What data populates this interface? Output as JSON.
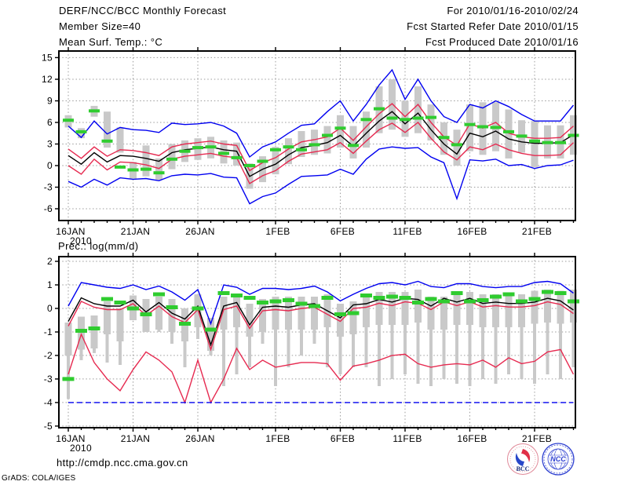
{
  "header": {
    "title": "DERF/NCC/BCC Monthly Forecast",
    "member_size": "Member Size=40",
    "for_range": "For 2010/01/16-2010/02/24",
    "refer_date": "Fcst Started Refer Date 2010/01/15",
    "produced_date": "Fcst Produced Date 2010/01/16"
  },
  "footer": {
    "url": "http://cmdp.ncc.cma.gov.cn",
    "grads_credit": "GrADS: COLA/IGES",
    "bcc_label": "BCC",
    "ncc_label": "NCC"
  },
  "colors": {
    "blue": "#0000f0",
    "red": "#e62a50",
    "green": "#2fcc2f",
    "black": "#000000",
    "bar": "#c9c9c9",
    "grid": "#9b9b9b"
  },
  "chart_data": [
    {
      "id": "temperature",
      "type": "line",
      "title": "Mean Surf. Temp.: °C",
      "ylabel": "°C",
      "n_days": 40,
      "x_start_date": "2010/01/16",
      "x_end_date": "2010/02/24",
      "x_tick_labels": [
        "16JAN",
        "21JAN",
        "26JAN",
        "1FEB",
        "6FEB",
        "11FEB",
        "16FEB",
        "21FEB"
      ],
      "x_tick_days": [
        0,
        5,
        10,
        16,
        21,
        26,
        31,
        36
      ],
      "year_label": "2010",
      "y_ticks": [
        15,
        12,
        9,
        6,
        3,
        0,
        -3,
        -6
      ],
      "ylim": [
        -7.63,
        15.92
      ],
      "grid": true,
      "series": [
        {
          "name": "ensemble-max-blue",
          "color_key": "blue",
          "values": [
            5.5,
            3.9,
            6.2,
            4.4,
            5.3,
            5.0,
            4.9,
            4.6,
            5.9,
            5.7,
            5.8,
            6.0,
            5.5,
            4.5,
            1.2,
            2.6,
            3.3,
            4.5,
            5.6,
            5.8,
            7.5,
            9.0,
            6.2,
            8.5,
            11.2,
            13.3,
            9.2,
            12.0,
            9.0,
            6.8,
            6.0,
            8.5,
            8.0,
            9.0,
            8.2,
            7.1,
            6.2,
            6.2,
            6.2,
            8.4
          ]
        },
        {
          "name": "upper-spread-red",
          "color_key": "red",
          "values": [
            2.3,
            1.0,
            2.6,
            1.3,
            2.2,
            2.1,
            1.8,
            1.4,
            2.6,
            3.0,
            3.2,
            3.4,
            3.0,
            2.8,
            -0.7,
            0.4,
            1.1,
            2.3,
            3.3,
            3.6,
            4.0,
            5.2,
            3.5,
            5.4,
            7.2,
            8.6,
            6.8,
            8.5,
            6.0,
            4.0,
            2.8,
            5.8,
            5.2,
            6.0,
            4.5,
            4.0,
            3.8,
            3.8,
            3.9,
            5.5
          ]
        },
        {
          "name": "ensemble-mean-black",
          "color_key": "black",
          "values": [
            1.4,
            0.2,
            1.8,
            0.5,
            1.4,
            1.3,
            1.0,
            0.6,
            1.8,
            2.2,
            2.4,
            2.6,
            2.2,
            2.0,
            -1.5,
            -0.5,
            0.2,
            1.5,
            2.5,
            2.8,
            3.2,
            4.2,
            2.7,
            4.5,
            6.2,
            7.5,
            5.8,
            7.3,
            5.0,
            3.0,
            1.6,
            4.5,
            4.0,
            4.8,
            3.7,
            3.3,
            3.1,
            3.1,
            3.2,
            4.3
          ]
        },
        {
          "name": "lower-spread-red",
          "color_key": "red",
          "values": [
            0.0,
            -1.2,
            0.9,
            -0.6,
            0.5,
            0.4,
            0.1,
            -0.4,
            0.9,
            1.3,
            1.5,
            1.7,
            1.3,
            1.1,
            -2.5,
            -1.4,
            -0.7,
            0.6,
            1.6,
            1.9,
            2.2,
            3.2,
            1.7,
            3.4,
            5.0,
            5.9,
            4.6,
            6.0,
            3.8,
            1.9,
            0.8,
            2.6,
            2.2,
            3.0,
            2.2,
            1.7,
            1.4,
            1.4,
            1.5,
            3.2
          ]
        },
        {
          "name": "ensemble-min-blue",
          "color_key": "blue",
          "values": [
            -2.2,
            -3.0,
            -1.9,
            -2.7,
            -1.7,
            -1.9,
            -1.8,
            -2.1,
            -1.4,
            -1.2,
            -1.3,
            -1.1,
            -1.6,
            -1.7,
            -5.3,
            -4.3,
            -3.8,
            -2.6,
            -1.5,
            -1.4,
            -1.3,
            -0.5,
            -1.2,
            0.9,
            2.3,
            2.6,
            2.4,
            2.5,
            1.2,
            0.4,
            -4.6,
            0.8,
            0.65,
            0.9,
            0.0,
            0.15,
            -0.4,
            0.0,
            0.1,
            0.75
          ]
        }
      ],
      "obs": {
        "name": "observation-dash-green",
        "color_key": "green",
        "values": [
          6.3,
          4.7,
          7.6,
          3.4,
          -0.2,
          -0.6,
          -0.5,
          -1.0,
          0.9,
          2.0,
          2.5,
          2.6,
          1.7,
          1.1,
          0.0,
          0.6,
          2.2,
          2.6,
          2.2,
          2.9,
          4.2,
          5.2,
          2.8,
          6.4,
          7.9,
          6.6,
          6.4,
          6.6,
          6.7,
          3.9,
          2.9,
          5.7,
          5.4,
          5.3,
          4.7,
          4.1,
          3.4,
          3.2,
          3.2,
          4.2
        ]
      },
      "bars": [
        [
          5.3,
          7.0
        ],
        [
          3.8,
          5.2
        ],
        [
          6.8,
          8.3
        ],
        [
          2.5,
          7.5
        ],
        [
          1.8,
          5.3
        ],
        [
          -1.8,
          0.5
        ],
        [
          -1.5,
          2.8
        ],
        [
          -2.0,
          1.0
        ],
        [
          -0.5,
          3.0
        ],
        [
          0.5,
          3.5
        ],
        [
          0.8,
          3.8
        ],
        [
          1.0,
          4.0
        ],
        [
          0.3,
          3.5
        ],
        [
          0.0,
          3.2
        ],
        [
          -3.2,
          0.3
        ],
        [
          -2.3,
          1.3
        ],
        [
          -1.2,
          2.6
        ],
        [
          0.2,
          3.8
        ],
        [
          1.2,
          4.8
        ],
        [
          1.5,
          5.0
        ],
        [
          1.7,
          5.5
        ],
        [
          2.5,
          7.0
        ],
        [
          1.0,
          5.5
        ],
        [
          2.5,
          7.5
        ],
        [
          4.5,
          11.0
        ],
        [
          5.0,
          12.0
        ],
        [
          4.0,
          9.0
        ],
        [
          4.5,
          11.0
        ],
        [
          3.5,
          8.5
        ],
        [
          1.5,
          6.0
        ],
        [
          0.0,
          5.0
        ],
        [
          2.0,
          8.5
        ],
        [
          1.5,
          8.8
        ],
        [
          2.0,
          8.8
        ],
        [
          1.0,
          7.8
        ],
        [
          1.8,
          6.3
        ],
        [
          -0.2,
          6.2
        ],
        [
          1.0,
          5.6
        ],
        [
          1.0,
          5.6
        ],
        [
          1.5,
          7.0
        ]
      ]
    },
    {
      "id": "precipitation",
      "type": "line",
      "title": "Prec.: log(mm/d)",
      "ylabel": "log(mm/d)",
      "n_days": 40,
      "x_start_date": "2010/01/16",
      "x_end_date": "2010/02/24",
      "x_tick_labels": [
        "16JAN",
        "21JAN",
        "26JAN",
        "1FEB",
        "6FEB",
        "11FEB",
        "16FEB",
        "21FEB"
      ],
      "x_tick_days": [
        0,
        5,
        10,
        16,
        21,
        26,
        31,
        36
      ],
      "year_label": "2010",
      "y_ticks": [
        2,
        1,
        0,
        -1,
        -2,
        -3,
        -4,
        -5
      ],
      "ylim": [
        -5.07,
        2.2
      ],
      "grid": true,
      "series": [
        {
          "name": "ensemble-max-blue",
          "color_key": "blue",
          "values": [
            0.1,
            1.1,
            1.0,
            0.9,
            0.85,
            1.0,
            0.8,
            0.95,
            0.7,
            0.35,
            0.8,
            -0.65,
            1.0,
            0.9,
            0.6,
            0.85,
            0.85,
            0.8,
            0.85,
            0.95,
            0.7,
            0.32,
            0.6,
            0.85,
            1.05,
            1.1,
            1.0,
            1.15,
            0.93,
            0.88,
            1.05,
            1.05,
            0.93,
            0.88,
            0.93,
            0.93,
            1.1,
            1.15,
            1.05,
            0.65
          ]
        },
        {
          "name": "upper-spread-red",
          "color_key": "red",
          "values": [
            -0.75,
            0.3,
            0.05,
            -0.05,
            -0.05,
            0.2,
            -0.3,
            0.1,
            -0.35,
            -0.6,
            -0.05,
            -1.75,
            -0.05,
            0.1,
            -0.85,
            -0.1,
            -0.05,
            -0.1,
            0.0,
            0.05,
            -0.25,
            -0.55,
            0.0,
            0.05,
            0.22,
            0.12,
            0.28,
            0.22,
            -0.05,
            0.28,
            0.12,
            0.28,
            0.06,
            0.12,
            0.06,
            0.06,
            0.12,
            0.28,
            0.17,
            -0.22
          ]
        },
        {
          "name": "ensemble-mean-black",
          "color_key": "black",
          "values": [
            -0.55,
            0.45,
            0.2,
            0.1,
            0.1,
            0.35,
            -0.15,
            0.25,
            -0.2,
            -0.45,
            0.1,
            -1.55,
            0.1,
            0.25,
            -0.7,
            0.05,
            0.1,
            0.05,
            0.15,
            0.2,
            -0.1,
            -0.4,
            0.15,
            0.2,
            0.38,
            0.27,
            0.43,
            0.38,
            0.1,
            0.43,
            0.27,
            0.43,
            0.21,
            0.27,
            0.21,
            0.21,
            0.27,
            0.43,
            0.32,
            -0.07
          ]
        },
        {
          "name": "lower-spread-red",
          "color_key": "red",
          "values": [
            -2.8,
            -1.1,
            -2.3,
            -3.0,
            -3.5,
            -2.6,
            -1.85,
            -2.2,
            -2.7,
            -4.0,
            -2.2,
            -4.0,
            -3.0,
            -1.7,
            -2.6,
            -2.2,
            -2.5,
            -2.4,
            -2.3,
            -2.3,
            -2.35,
            -3.05,
            -2.45,
            -2.35,
            -2.2,
            -2.0,
            -1.95,
            -2.35,
            -2.5,
            -2.4,
            -2.35,
            -2.4,
            -2.2,
            -2.5,
            -2.1,
            -2.35,
            -2.25,
            -1.85,
            -1.75,
            -2.8
          ]
        },
        {
          "name": "ensemble-min-blue",
          "color_key": "blue",
          "dashed": true,
          "values": [
            -4,
            -4,
            -4,
            -4,
            -4,
            -4,
            -4,
            -4,
            -4,
            -4,
            -4,
            -4,
            -4,
            -4,
            -4,
            -4,
            -4,
            -4,
            -4,
            -4,
            -4,
            -4,
            -4,
            -4,
            -4,
            -4,
            -4,
            -4,
            -4,
            -4,
            -4,
            -4,
            -4,
            -4,
            -4,
            -4,
            -4,
            -4,
            -4,
            -4
          ]
        }
      ],
      "obs": {
        "name": "observation-dash-green",
        "color_key": "green",
        "values": [
          -3.0,
          -0.95,
          -0.85,
          0.4,
          0.25,
          0.0,
          -0.25,
          0.6,
          0.05,
          -0.65,
          0.0,
          -0.9,
          0.65,
          0.55,
          0.45,
          0.25,
          0.3,
          0.35,
          0.2,
          0.1,
          0.45,
          -0.25,
          -0.2,
          0.55,
          0.45,
          0.5,
          0.45,
          0.25,
          0.4,
          0.3,
          0.65,
          0.3,
          0.35,
          0.5,
          0.6,
          0.3,
          0.4,
          0.7,
          0.65,
          0.3
        ]
      },
      "bars": [
        [
          -3.85,
          -2.0,
          -0.6
        ],
        [
          -2.2,
          -1.75,
          -0.35
        ],
        [
          -1.9,
          -1.7,
          -0.3
        ],
        [
          -2.3,
          -1.1,
          0.3
        ],
        [
          -2.4,
          -1.4,
          0.0
        ],
        [
          -0.5,
          -0.5,
          0.55
        ],
        [
          -1.0,
          -1.0,
          0.4
        ],
        [
          -1.0,
          -0.9,
          0.5
        ],
        [
          -1.5,
          -1.0,
          0.4
        ],
        [
          -2.5,
          -1.4,
          0.0
        ],
        [
          -1.3,
          -0.8,
          0.6
        ],
        [
          -2.0,
          -1.8,
          -0.4
        ],
        [
          -3.3,
          -0.9,
          0.5
        ],
        [
          -2.8,
          -0.8,
          0.6
        ],
        [
          -2.5,
          -1.2,
          0.2
        ],
        [
          -1.5,
          -1.0,
          0.4
        ],
        [
          -3.3,
          -0.9,
          0.5
        ],
        [
          -2.5,
          -0.9,
          0.5
        ],
        [
          -2.0,
          -0.9,
          0.5
        ],
        [
          -1.5,
          -0.9,
          0.5
        ],
        [
          -2.5,
          -0.8,
          0.6
        ],
        [
          -2.8,
          -1.2,
          0.2
        ],
        [
          -2.5,
          -1.1,
          0.3
        ],
        [
          -2.5,
          -0.8,
          0.6
        ],
        [
          -3.3,
          -0.7,
          0.7
        ],
        [
          -3.0,
          -0.7,
          0.7
        ],
        [
          -2.8,
          -0.7,
          0.7
        ],
        [
          -3.2,
          -0.6,
          0.8
        ],
        [
          -3.3,
          -0.9,
          0.5
        ],
        [
          -3.0,
          -0.9,
          0.5
        ],
        [
          -3.2,
          -0.7,
          0.7
        ],
        [
          -3.3,
          -0.7,
          0.7
        ],
        [
          -3.0,
          -0.8,
          0.6
        ],
        [
          -3.2,
          -0.8,
          0.6
        ],
        [
          -2.8,
          -0.8,
          0.6
        ],
        [
          -3.0,
          -0.8,
          0.6
        ],
        [
          -3.2,
          -0.65,
          0.75
        ],
        [
          -2.8,
          -0.6,
          0.8
        ],
        [
          -3.0,
          -0.65,
          0.75
        ],
        [
          -2.5,
          -0.6,
          0.8
        ]
      ]
    }
  ]
}
